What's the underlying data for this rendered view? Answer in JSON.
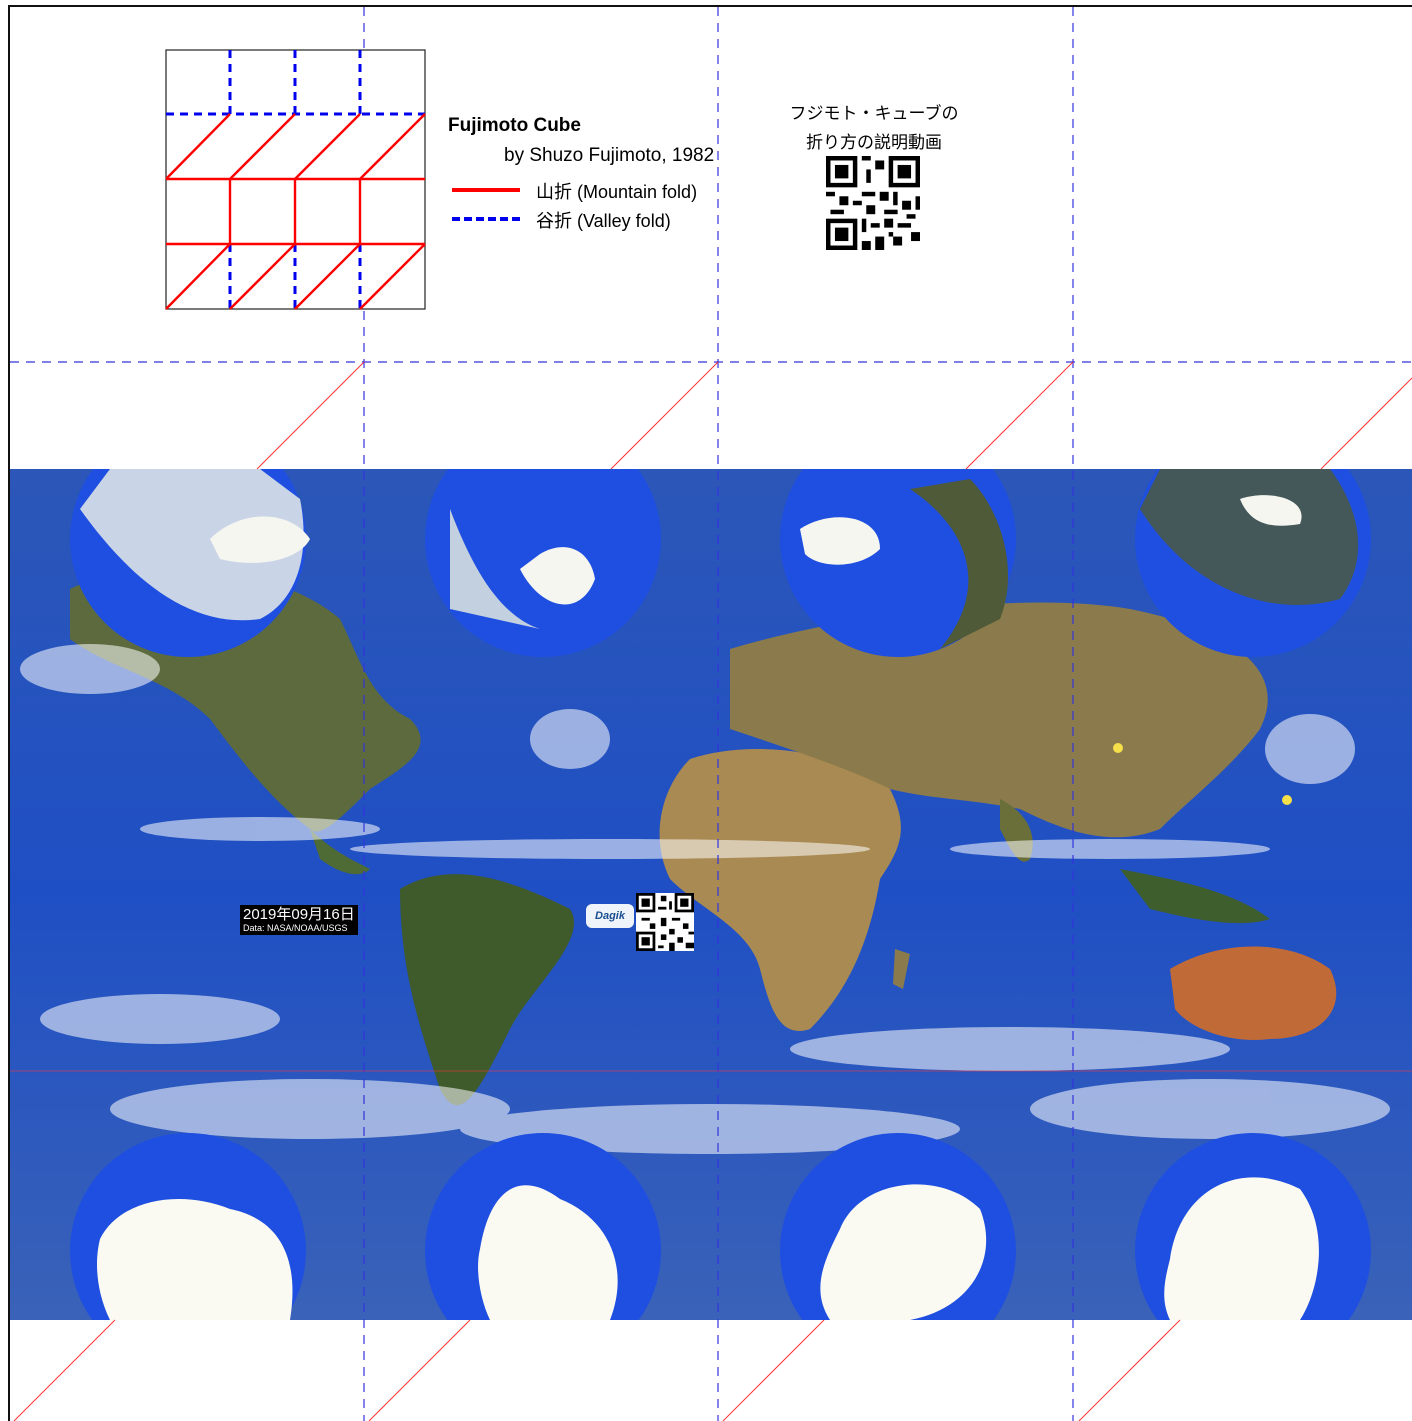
{
  "title": "Fujimoto Cube",
  "byline": "by Shuzo Fujimoto, 1982",
  "legend": {
    "mountain_label": "山折 (Mountain fold)",
    "valley_label": "谷折 (Valley fold)",
    "mountain_color": "#ff0000",
    "valley_color": "#0000ee"
  },
  "video_note": {
    "line1": "フジモト・キューブの",
    "line2": "折り方の説明動画"
  },
  "map": {
    "date": "2019年09月16日",
    "source": "Data: NASA/NOAA/USGS",
    "logo_text": "Dagik"
  },
  "icons": {
    "qr_main": "qr-code-icon",
    "qr_small": "qr-code-icon",
    "logo": "dagik-logo-icon"
  }
}
